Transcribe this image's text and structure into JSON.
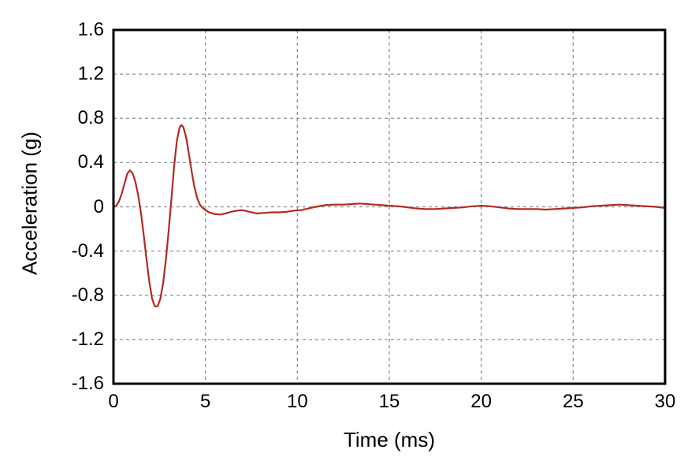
{
  "chart_data": {
    "type": "line",
    "title": "",
    "xlabel": "Time (ms)",
    "ylabel": "Acceleration (g)",
    "xlim": [
      0,
      30
    ],
    "ylim": [
      -1.6,
      1.6
    ],
    "xtick_labels": [
      "0",
      "5",
      "10",
      "15",
      "20",
      "25",
      "30"
    ],
    "ytick_labels": [
      "1.6",
      "1.2",
      "0.8",
      "0.4",
      "0",
      "-0.4",
      "-0.8",
      "-1.2",
      "-1.6"
    ],
    "grid": "dashed",
    "legend": "none",
    "line_color": "#b22a22",
    "grid_color": "#8f8f8f",
    "axis_color": "#000000",
    "series": [
      {
        "name": "acceleration-trace",
        "x": [
          0,
          0.15,
          0.3,
          0.45,
          0.6,
          0.75,
          0.9,
          1.05,
          1.2,
          1.35,
          1.5,
          1.65,
          1.8,
          1.95,
          2.1,
          2.25,
          2.4,
          2.55,
          2.7,
          2.85,
          3.0,
          3.15,
          3.3,
          3.45,
          3.6,
          3.7,
          3.8,
          3.95,
          4.1,
          4.25,
          4.4,
          4.55,
          4.7,
          4.85,
          5.0,
          5.2,
          5.5,
          5.8,
          6.1,
          6.4,
          6.7,
          7.0,
          7.4,
          7.8,
          8.2,
          8.6,
          9.0,
          9.4,
          9.8,
          10.2,
          10.6,
          11.0,
          11.5,
          12.0,
          12.5,
          13.0,
          13.4,
          13.8,
          14.2,
          14.6,
          15.0,
          15.5,
          16.0,
          16.5,
          17.0,
          17.5,
          18.0,
          18.5,
          19.0,
          19.5,
          20.0,
          20.5,
          21.0,
          21.5,
          22.0,
          22.5,
          23.0,
          23.5,
          24.0,
          24.5,
          25.0,
          25.5,
          26.0,
          26.5,
          27.0,
          27.5,
          28.0,
          28.5,
          29.0,
          29.5,
          30.0
        ],
        "y": [
          0,
          0.01,
          0.05,
          0.12,
          0.21,
          0.3,
          0.33,
          0.3,
          0.22,
          0.1,
          -0.06,
          -0.26,
          -0.48,
          -0.68,
          -0.83,
          -0.9,
          -0.9,
          -0.83,
          -0.69,
          -0.48,
          -0.22,
          0.07,
          0.37,
          0.6,
          0.72,
          0.74,
          0.72,
          0.63,
          0.48,
          0.32,
          0.18,
          0.08,
          0.02,
          -0.01,
          -0.03,
          -0.05,
          -0.065,
          -0.07,
          -0.06,
          -0.045,
          -0.035,
          -0.03,
          -0.045,
          -0.06,
          -0.055,
          -0.05,
          -0.05,
          -0.045,
          -0.035,
          -0.03,
          -0.015,
          0,
          0.015,
          0.02,
          0.02,
          0.025,
          0.03,
          0.025,
          0.02,
          0.015,
          0.01,
          0.005,
          -0.005,
          -0.015,
          -0.02,
          -0.02,
          -0.015,
          -0.01,
          -0.005,
          0.005,
          0.01,
          0.005,
          -0.005,
          -0.015,
          -0.02,
          -0.02,
          -0.02,
          -0.025,
          -0.02,
          -0.015,
          -0.01,
          -0.005,
          0.005,
          0.01,
          0.015,
          0.02,
          0.015,
          0.01,
          0.005,
          0,
          -0.01
        ]
      }
    ]
  }
}
